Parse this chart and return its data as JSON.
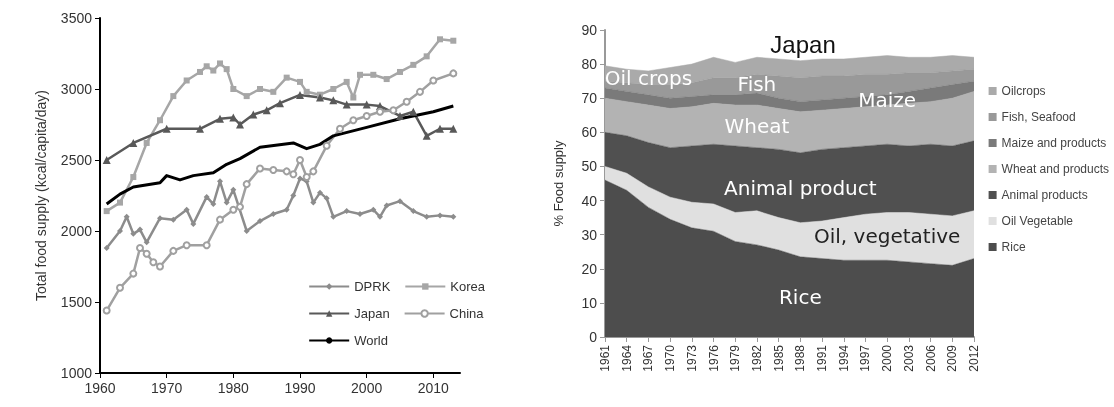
{
  "chart_data": [
    {
      "type": "line",
      "ylabel": "Total food supply (kcal/capita/day)",
      "xlim": [
        1960,
        2014
      ],
      "xticks": [
        1960,
        1970,
        1980,
        1990,
        2000,
        2010
      ],
      "ylim": [
        1000,
        3500
      ],
      "yticks": [
        1000,
        1500,
        2000,
        2500,
        3000,
        3500
      ],
      "grid": false,
      "legend": "bottom right",
      "line_style": "solid",
      "series": [
        {
          "name": "DPRK",
          "color": "#8c8c8c",
          "marker": "diamond",
          "x": [
            1961,
            1963,
            1964,
            1965,
            1966,
            1967,
            1969,
            1971,
            1973,
            1974,
            1976,
            1977,
            1978,
            1979,
            1980,
            1982,
            1984,
            1986,
            1988,
            1989,
            1990,
            1991,
            1992,
            1993,
            1994,
            1995,
            1997,
            1999,
            2001,
            2002,
            2003,
            2005,
            2007,
            2009,
            2011,
            2013
          ],
          "values": [
            1880,
            2000,
            2100,
            1980,
            2010,
            1920,
            2090,
            2080,
            2150,
            2050,
            2240,
            2190,
            2350,
            2200,
            2290,
            2000,
            2070,
            2120,
            2150,
            2250,
            2370,
            2350,
            2200,
            2270,
            2230,
            2100,
            2140,
            2120,
            2150,
            2100,
            2180,
            2210,
            2140,
            2100,
            2110,
            2100
          ]
        },
        {
          "name": "Korea",
          "color": "#a6a6a6",
          "marker": "square",
          "x": [
            1961,
            1963,
            1965,
            1967,
            1969,
            1971,
            1973,
            1975,
            1976,
            1977,
            1978,
            1979,
            1980,
            1982,
            1984,
            1986,
            1988,
            1990,
            1991,
            1993,
            1995,
            1997,
            1998,
            1999,
            2001,
            2003,
            2005,
            2007,
            2009,
            2011,
            2013
          ],
          "values": [
            2140,
            2200,
            2380,
            2620,
            2780,
            2950,
            3060,
            3120,
            3160,
            3130,
            3180,
            3140,
            3000,
            2950,
            3000,
            2980,
            3080,
            3050,
            2980,
            2960,
            3000,
            3050,
            2940,
            3100,
            3100,
            3070,
            3120,
            3170,
            3230,
            3350,
            3340
          ]
        },
        {
          "name": "Japan",
          "color": "#595959",
          "marker": "triangle",
          "x": [
            1961,
            1965,
            1970,
            1975,
            1978,
            1980,
            1981,
            1983,
            1985,
            1987,
            1990,
            1993,
            1995,
            1997,
            2000,
            2002,
            2005,
            2007,
            2009,
            2011,
            2013
          ],
          "values": [
            2500,
            2620,
            2720,
            2720,
            2790,
            2800,
            2750,
            2820,
            2850,
            2900,
            2958,
            2940,
            2920,
            2890,
            2890,
            2880,
            2810,
            2840,
            2670,
            2720,
            2720
          ]
        },
        {
          "name": "China",
          "color": "#a0a0a0",
          "marker": "circle",
          "x": [
            1961,
            1963,
            1965,
            1966,
            1967,
            1968,
            1969,
            1971,
            1973,
            1976,
            1978,
            1980,
            1981,
            1982,
            1984,
            1986,
            1988,
            1989,
            1990,
            1991,
            1992,
            1994,
            1996,
            1998,
            2000,
            2002,
            2004,
            2006,
            2008,
            2010,
            2013
          ],
          "values": [
            1440,
            1600,
            1700,
            1880,
            1840,
            1780,
            1750,
            1860,
            1900,
            1900,
            2080,
            2150,
            2170,
            2330,
            2440,
            2430,
            2420,
            2400,
            2500,
            2380,
            2420,
            2600,
            2720,
            2780,
            2810,
            2840,
            2850,
            2910,
            2980,
            3060,
            3110
          ]
        },
        {
          "name": "World",
          "color": "#000000",
          "marker": "none",
          "x": [
            1961,
            1963,
            1965,
            1969,
            1970,
            1972,
            1974,
            1977,
            1979,
            1981,
            1984,
            1989,
            1991,
            1993,
            1995,
            2000,
            2005,
            2010,
            2013
          ],
          "values": [
            2190,
            2260,
            2310,
            2340,
            2390,
            2360,
            2390,
            2410,
            2470,
            2510,
            2590,
            2620,
            2580,
            2610,
            2670,
            2730,
            2790,
            2840,
            2880
          ]
        }
      ]
    },
    {
      "type": "area",
      "stacked": true,
      "title": "Japan",
      "ylabel": "% Food supply",
      "ylim": [
        0,
        90
      ],
      "yticks": [
        0,
        10,
        20,
        30,
        40,
        50,
        60,
        70,
        80,
        90
      ],
      "grid": false,
      "legend": "right",
      "categories": [
        "1961",
        "1964",
        "1967",
        "1970",
        "1973",
        "1976",
        "1979",
        "1982",
        "1985",
        "1988",
        "1991",
        "1994",
        "1997",
        "2000",
        "2003",
        "2006",
        "2009",
        "2012"
      ],
      "series": [
        {
          "name": "Rice",
          "color": "#4d4d4d",
          "values": [
            46,
            43,
            38,
            34.5,
            32,
            31,
            28,
            27,
            25.5,
            23.5,
            23,
            22.5,
            22.5,
            22.5,
            22,
            21.5,
            21,
            23
          ]
        },
        {
          "name": "Oil Vegetable",
          "color": "#e0e0e0",
          "values": [
            4,
            5,
            6,
            6.5,
            7.5,
            8,
            8.5,
            10,
            9.5,
            10,
            11,
            12.5,
            13.5,
            14,
            14.5,
            14.5,
            14.5,
            14
          ]
        },
        {
          "name": "Animal products",
          "color": "#505050",
          "values": [
            10,
            11,
            13,
            14.5,
            16.5,
            17.5,
            19.5,
            18.5,
            20,
            20.5,
            21,
            20.5,
            20,
            20,
            19.5,
            20.5,
            20.5,
            20.5
          ]
        },
        {
          "name": "Wheat and products",
          "color": "#b3b3b3",
          "values": [
            10,
            10,
            11,
            11.5,
            11.5,
            12,
            12,
            12.5,
            12,
            12,
            11.5,
            11.5,
            11.5,
            11.5,
            12.5,
            12.5,
            14,
            14.5
          ]
        },
        {
          "name": "Maize and products",
          "color": "#7a7a7a",
          "values": [
            3,
            3,
            3,
            3,
            3,
            2.5,
            3,
            3.5,
            3,
            3,
            3,
            3,
            3,
            3,
            3.5,
            4,
            4,
            3
          ]
        },
        {
          "name": "Fish, Seafood",
          "color": "#999999",
          "values": [
            2,
            2.5,
            3,
            4,
            4,
            5,
            5,
            5.5,
            6.5,
            7,
            7,
            6.5,
            6.5,
            6,
            5.5,
            4.5,
            4,
            3.5
          ]
        },
        {
          "name": "Oilcrops",
          "color": "#aaaaaa",
          "values": [
            4.5,
            4,
            4,
            5,
            5.5,
            6,
            4.5,
            5,
            5,
            5,
            5,
            5,
            5,
            5.5,
            4.5,
            4.5,
            4.5,
            3.5
          ]
        }
      ],
      "annotations": [
        "Rice",
        "Oil, vegetative",
        "Animal product",
        "Wheat",
        "Maize",
        "Fish",
        "Oil crops"
      ]
    }
  ]
}
